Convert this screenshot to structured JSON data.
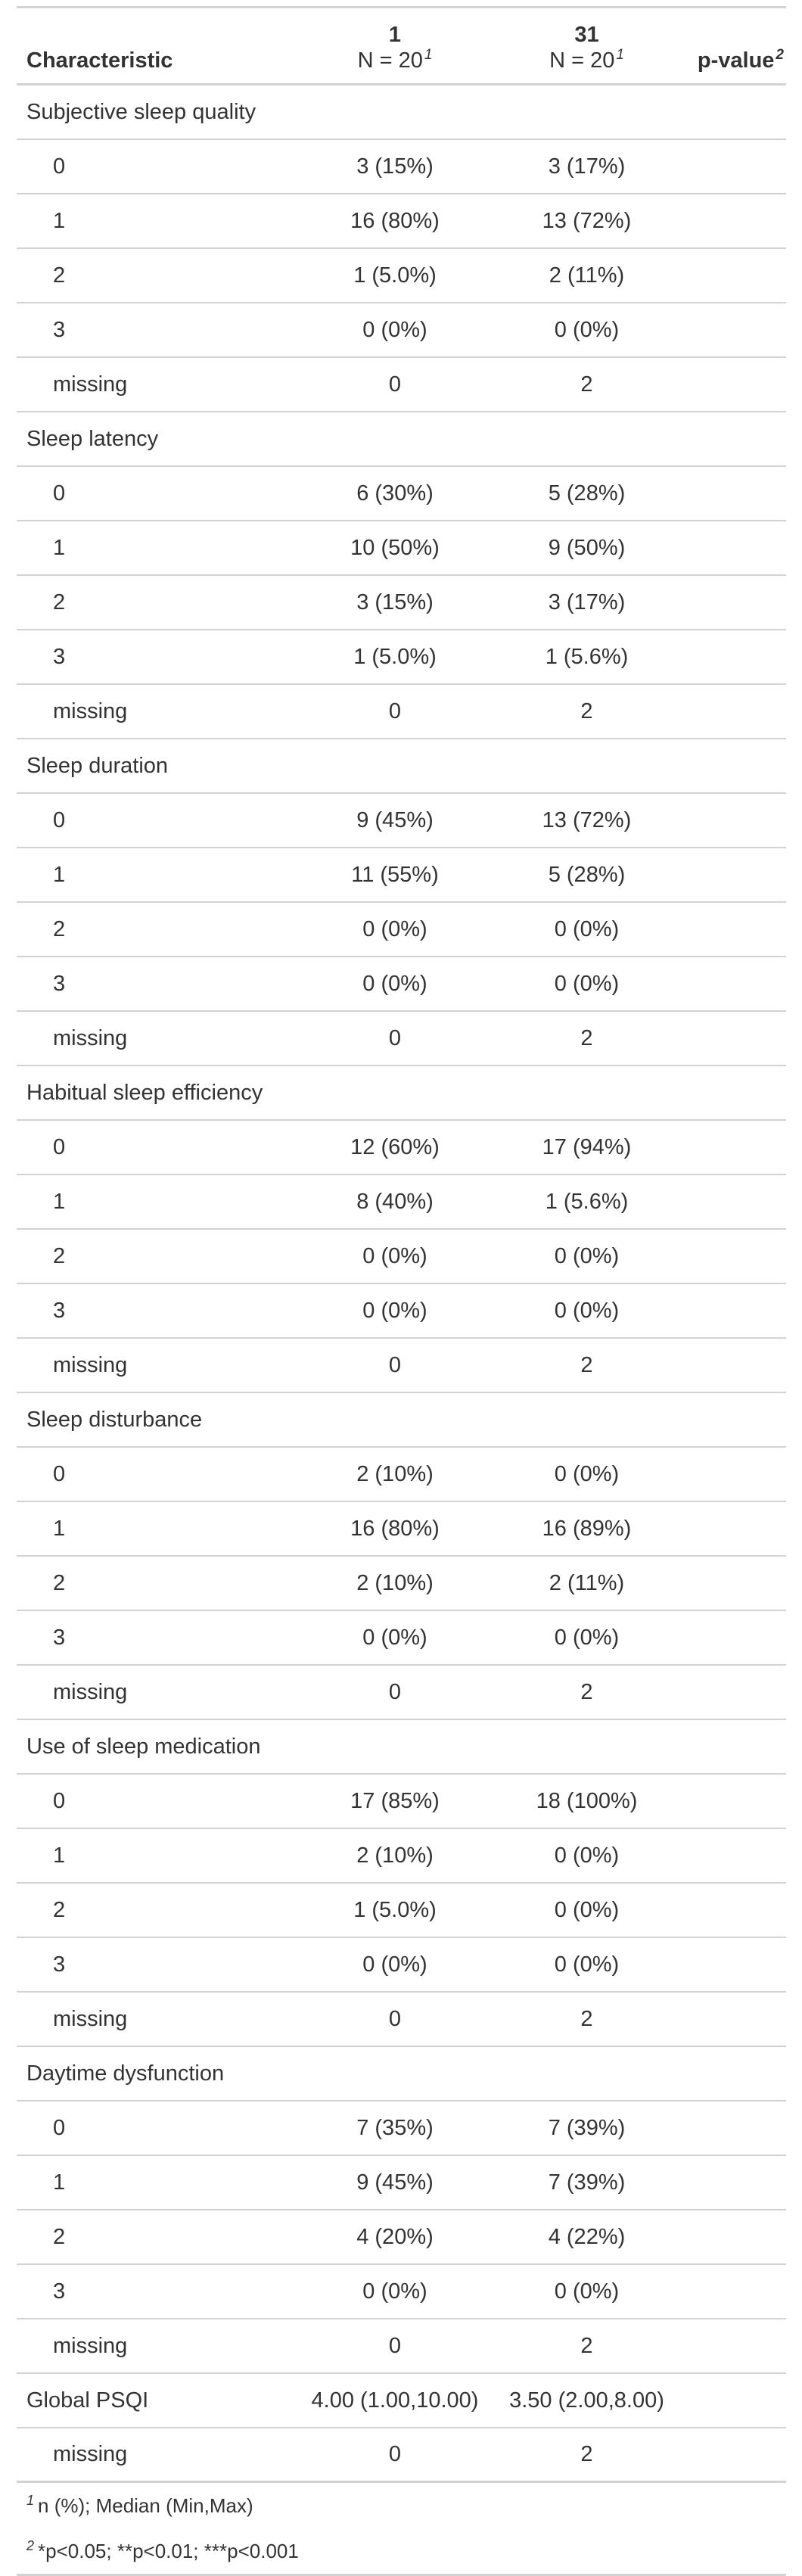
{
  "header": {
    "characteristic": "Characteristic",
    "groups": [
      {
        "name": "1",
        "n": "N = 20",
        "mark": "1"
      },
      {
        "name": "31",
        "n": "N = 20",
        "mark": "1"
      }
    ],
    "pvalue": "p-value",
    "pvalue_mark": "2"
  },
  "rows": [
    {
      "type": "section",
      "label": "Subjective sleep quality"
    },
    {
      "type": "level",
      "label": "0",
      "g1": "3 (15%)",
      "g2": "3 (17%)",
      "p": ""
    },
    {
      "type": "level",
      "label": "1",
      "g1": "16 (80%)",
      "g2": "13 (72%)",
      "p": ""
    },
    {
      "type": "level",
      "label": "2",
      "g1": "1 (5.0%)",
      "g2": "2 (11%)",
      "p": ""
    },
    {
      "type": "level",
      "label": "3",
      "g1": "0 (0%)",
      "g2": "0 (0%)",
      "p": ""
    },
    {
      "type": "level",
      "label": "missing",
      "g1": "0",
      "g2": "2",
      "p": ""
    },
    {
      "type": "section",
      "label": "Sleep latency"
    },
    {
      "type": "level",
      "label": "0",
      "g1": "6 (30%)",
      "g2": "5 (28%)",
      "p": ""
    },
    {
      "type": "level",
      "label": "1",
      "g1": "10 (50%)",
      "g2": "9 (50%)",
      "p": ""
    },
    {
      "type": "level",
      "label": "2",
      "g1": "3 (15%)",
      "g2": "3 (17%)",
      "p": ""
    },
    {
      "type": "level",
      "label": "3",
      "g1": "1 (5.0%)",
      "g2": "1 (5.6%)",
      "p": ""
    },
    {
      "type": "level",
      "label": "missing",
      "g1": "0",
      "g2": "2",
      "p": ""
    },
    {
      "type": "section",
      "label": "Sleep duration"
    },
    {
      "type": "level",
      "label": "0",
      "g1": "9 (45%)",
      "g2": "13 (72%)",
      "p": ""
    },
    {
      "type": "level",
      "label": "1",
      "g1": "11 (55%)",
      "g2": "5 (28%)",
      "p": ""
    },
    {
      "type": "level",
      "label": "2",
      "g1": "0 (0%)",
      "g2": "0 (0%)",
      "p": ""
    },
    {
      "type": "level",
      "label": "3",
      "g1": "0 (0%)",
      "g2": "0 (0%)",
      "p": ""
    },
    {
      "type": "level",
      "label": "missing",
      "g1": "0",
      "g2": "2",
      "p": ""
    },
    {
      "type": "section",
      "label": "Habitual sleep efficiency"
    },
    {
      "type": "level",
      "label": "0",
      "g1": "12 (60%)",
      "g2": "17 (94%)",
      "p": ""
    },
    {
      "type": "level",
      "label": "1",
      "g1": "8 (40%)",
      "g2": "1 (5.6%)",
      "p": ""
    },
    {
      "type": "level",
      "label": "2",
      "g1": "0 (0%)",
      "g2": "0 (0%)",
      "p": ""
    },
    {
      "type": "level",
      "label": "3",
      "g1": "0 (0%)",
      "g2": "0 (0%)",
      "p": ""
    },
    {
      "type": "level",
      "label": "missing",
      "g1": "0",
      "g2": "2",
      "p": ""
    },
    {
      "type": "section",
      "label": "Sleep disturbance"
    },
    {
      "type": "level",
      "label": "0",
      "g1": "2 (10%)",
      "g2": "0 (0%)",
      "p": ""
    },
    {
      "type": "level",
      "label": "1",
      "g1": "16 (80%)",
      "g2": "16 (89%)",
      "p": ""
    },
    {
      "type": "level",
      "label": "2",
      "g1": "2 (10%)",
      "g2": "2 (11%)",
      "p": ""
    },
    {
      "type": "level",
      "label": "3",
      "g1": "0 (0%)",
      "g2": "0 (0%)",
      "p": ""
    },
    {
      "type": "level",
      "label": "missing",
      "g1": "0",
      "g2": "2",
      "p": ""
    },
    {
      "type": "section",
      "label": "Use of sleep medication"
    },
    {
      "type": "level",
      "label": "0",
      "g1": "17 (85%)",
      "g2": "18 (100%)",
      "p": ""
    },
    {
      "type": "level",
      "label": "1",
      "g1": "2 (10%)",
      "g2": "0 (0%)",
      "p": ""
    },
    {
      "type": "level",
      "label": "2",
      "g1": "1 (5.0%)",
      "g2": "0 (0%)",
      "p": ""
    },
    {
      "type": "level",
      "label": "3",
      "g1": "0 (0%)",
      "g2": "0 (0%)",
      "p": ""
    },
    {
      "type": "level",
      "label": "missing",
      "g1": "0",
      "g2": "2",
      "p": ""
    },
    {
      "type": "section",
      "label": "Daytime dysfunction"
    },
    {
      "type": "level",
      "label": "0",
      "g1": "7 (35%)",
      "g2": "7 (39%)",
      "p": ""
    },
    {
      "type": "level",
      "label": "1",
      "g1": "9 (45%)",
      "g2": "7 (39%)",
      "p": ""
    },
    {
      "type": "level",
      "label": "2",
      "g1": "4 (20%)",
      "g2": "4 (22%)",
      "p": ""
    },
    {
      "type": "level",
      "label": "3",
      "g1": "0 (0%)",
      "g2": "0 (0%)",
      "p": ""
    },
    {
      "type": "level",
      "label": "missing",
      "g1": "0",
      "g2": "2",
      "p": ""
    },
    {
      "type": "variable",
      "label": "Global PSQI",
      "g1": "4.00 (1.00,10.00)",
      "g2": "3.50 (2.00,8.00)",
      "p": ""
    },
    {
      "type": "level",
      "label": "missing",
      "g1": "0",
      "g2": "2",
      "p": ""
    }
  ],
  "footnotes": [
    {
      "mark": "1",
      "text": "n (%); Median (Min,Max)"
    },
    {
      "mark": "2",
      "text": "*p<0.05; **p<0.01; ***p<0.001"
    }
  ]
}
